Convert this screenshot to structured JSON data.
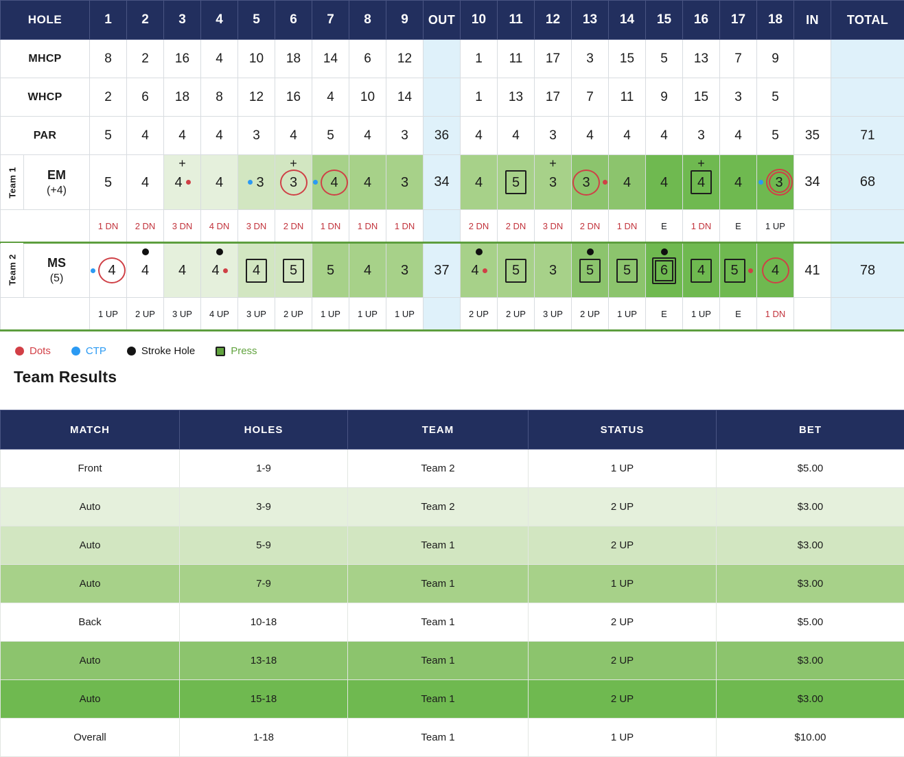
{
  "colors": {
    "navy": "#222f5e",
    "accent_red": "#cf4046",
    "accent_blue": "#2b9af3",
    "press_green": "#5d9e3e",
    "total_col_bg": "#dff1fa",
    "press_levels": [
      "#ffffff",
      "#e5f0dc",
      "#d2e6c1",
      "#a7d189",
      "#8cc46d",
      "#6fb950"
    ]
  },
  "scorecard": {
    "header": {
      "hole": "HOLE",
      "out": "OUT",
      "in": "IN",
      "total": "TOTAL",
      "holes": [
        "1",
        "2",
        "3",
        "4",
        "5",
        "6",
        "7",
        "8",
        "9",
        "10",
        "11",
        "12",
        "13",
        "14",
        "15",
        "16",
        "17",
        "18"
      ]
    },
    "mhcp": {
      "label": "MHCP",
      "front": [
        "8",
        "2",
        "16",
        "4",
        "10",
        "18",
        "14",
        "6",
        "12"
      ],
      "back": [
        "1",
        "11",
        "17",
        "3",
        "15",
        "5",
        "13",
        "7",
        "9"
      ],
      "out": "",
      "in": "",
      "total": ""
    },
    "whcp": {
      "label": "WHCP",
      "front": [
        "2",
        "6",
        "18",
        "8",
        "12",
        "16",
        "4",
        "10",
        "14"
      ],
      "back": [
        "1",
        "13",
        "17",
        "7",
        "11",
        "9",
        "15",
        "3",
        "5"
      ],
      "out": "",
      "in": "",
      "total": ""
    },
    "par": {
      "label": "PAR",
      "front": [
        "5",
        "4",
        "4",
        "4",
        "3",
        "4",
        "5",
        "4",
        "3"
      ],
      "back": [
        "4",
        "4",
        "3",
        "4",
        "4",
        "4",
        "3",
        "4",
        "5"
      ],
      "out": "36",
      "in": "35",
      "total": "71"
    },
    "teams": [
      {
        "team_label": "Team 1",
        "player": "EM",
        "handicap": "(+4)",
        "out_total": "34",
        "in_total": "34",
        "grand_total": "68",
        "holes": [
          {
            "score": "5",
            "bg": 0,
            "deco": "none",
            "plus": false,
            "stroke": false,
            "ctp": false,
            "dot": false,
            "status": "1 DN",
            "status_red": true
          },
          {
            "score": "4",
            "bg": 0,
            "deco": "none",
            "plus": false,
            "stroke": false,
            "ctp": false,
            "dot": false,
            "status": "2 DN",
            "status_red": true
          },
          {
            "score": "4",
            "bg": 1,
            "deco": "none",
            "plus": true,
            "stroke": false,
            "ctp": false,
            "dot": true,
            "status": "3 DN",
            "status_red": true
          },
          {
            "score": "4",
            "bg": 1,
            "deco": "none",
            "plus": false,
            "stroke": false,
            "ctp": false,
            "dot": false,
            "status": "4 DN",
            "status_red": true
          },
          {
            "score": "3",
            "bg": 2,
            "deco": "none",
            "plus": false,
            "stroke": false,
            "ctp": true,
            "dot": false,
            "status": "3 DN",
            "status_red": true
          },
          {
            "score": "3",
            "bg": 2,
            "deco": "circle",
            "plus": true,
            "stroke": false,
            "ctp": false,
            "dot": false,
            "status": "2 DN",
            "status_red": true
          },
          {
            "score": "4",
            "bg": 3,
            "deco": "circle",
            "plus": false,
            "stroke": false,
            "ctp": true,
            "dot": false,
            "status": "1 DN",
            "status_red": true
          },
          {
            "score": "4",
            "bg": 3,
            "deco": "none",
            "plus": false,
            "stroke": false,
            "ctp": false,
            "dot": false,
            "status": "1 DN",
            "status_red": true
          },
          {
            "score": "3",
            "bg": 3,
            "deco": "none",
            "plus": false,
            "stroke": false,
            "ctp": false,
            "dot": false,
            "status": "1 DN",
            "status_red": true
          },
          {
            "score": "4",
            "bg": 3,
            "deco": "none",
            "plus": false,
            "stroke": false,
            "ctp": false,
            "dot": false,
            "status": "2 DN",
            "status_red": true
          },
          {
            "score": "5",
            "bg": 3,
            "deco": "square",
            "plus": false,
            "stroke": false,
            "ctp": false,
            "dot": false,
            "status": "2 DN",
            "status_red": true
          },
          {
            "score": "3",
            "bg": 3,
            "deco": "none",
            "plus": true,
            "stroke": false,
            "ctp": false,
            "dot": false,
            "status": "3 DN",
            "status_red": true
          },
          {
            "score": "3",
            "bg": 4,
            "deco": "circle",
            "plus": false,
            "stroke": false,
            "ctp": false,
            "dot": true,
            "status": "2 DN",
            "status_red": true
          },
          {
            "score": "4",
            "bg": 4,
            "deco": "none",
            "plus": false,
            "stroke": false,
            "ctp": false,
            "dot": false,
            "status": "1 DN",
            "status_red": true
          },
          {
            "score": "4",
            "bg": 5,
            "deco": "none",
            "plus": false,
            "stroke": false,
            "ctp": false,
            "dot": false,
            "status": "E",
            "status_red": false
          },
          {
            "score": "4",
            "bg": 5,
            "deco": "square",
            "plus": true,
            "stroke": false,
            "ctp": false,
            "dot": false,
            "status": "1 DN",
            "status_red": true
          },
          {
            "score": "4",
            "bg": 5,
            "deco": "none",
            "plus": false,
            "stroke": false,
            "ctp": false,
            "dot": false,
            "status": "E",
            "status_red": false
          },
          {
            "score": "3",
            "bg": 5,
            "deco": "circle2",
            "plus": false,
            "stroke": false,
            "ctp": true,
            "dot": false,
            "status": "1 UP",
            "status_red": false
          }
        ]
      },
      {
        "team_label": "Team 2",
        "player": "MS",
        "handicap": "(5)",
        "out_total": "37",
        "in_total": "41",
        "grand_total": "78",
        "holes": [
          {
            "score": "4",
            "bg": 0,
            "deco": "circle",
            "plus": false,
            "stroke": false,
            "ctp": true,
            "dot": false,
            "status": "1 UP",
            "status_red": false
          },
          {
            "score": "4",
            "bg": 0,
            "deco": "none",
            "plus": false,
            "stroke": true,
            "ctp": false,
            "dot": false,
            "status": "2 UP",
            "status_red": false
          },
          {
            "score": "4",
            "bg": 1,
            "deco": "none",
            "plus": false,
            "stroke": false,
            "ctp": false,
            "dot": false,
            "status": "3 UP",
            "status_red": false
          },
          {
            "score": "4",
            "bg": 1,
            "deco": "none",
            "plus": false,
            "stroke": true,
            "ctp": false,
            "dot": true,
            "status": "4 UP",
            "status_red": false
          },
          {
            "score": "4",
            "bg": 2,
            "deco": "square",
            "plus": false,
            "stroke": false,
            "ctp": false,
            "dot": false,
            "status": "3 UP",
            "status_red": false
          },
          {
            "score": "5",
            "bg": 2,
            "deco": "square",
            "plus": false,
            "stroke": false,
            "ctp": false,
            "dot": false,
            "status": "2 UP",
            "status_red": false
          },
          {
            "score": "5",
            "bg": 3,
            "deco": "none",
            "plus": false,
            "stroke": false,
            "ctp": false,
            "dot": false,
            "status": "1 UP",
            "status_red": false
          },
          {
            "score": "4",
            "bg": 3,
            "deco": "none",
            "plus": false,
            "stroke": false,
            "ctp": false,
            "dot": false,
            "status": "1 UP",
            "status_red": false
          },
          {
            "score": "3",
            "bg": 3,
            "deco": "none",
            "plus": false,
            "stroke": false,
            "ctp": false,
            "dot": false,
            "status": "1 UP",
            "status_red": false
          },
          {
            "score": "4",
            "bg": 3,
            "deco": "none",
            "plus": false,
            "stroke": true,
            "ctp": false,
            "dot": true,
            "status": "2 UP",
            "status_red": false
          },
          {
            "score": "5",
            "bg": 3,
            "deco": "square",
            "plus": false,
            "stroke": false,
            "ctp": false,
            "dot": false,
            "status": "2 UP",
            "status_red": false
          },
          {
            "score": "3",
            "bg": 3,
            "deco": "none",
            "plus": false,
            "stroke": false,
            "ctp": false,
            "dot": false,
            "status": "3 UP",
            "status_red": false
          },
          {
            "score": "5",
            "bg": 4,
            "deco": "square",
            "plus": false,
            "stroke": true,
            "ctp": false,
            "dot": false,
            "status": "2 UP",
            "status_red": false
          },
          {
            "score": "5",
            "bg": 4,
            "deco": "square",
            "plus": false,
            "stroke": false,
            "ctp": false,
            "dot": false,
            "status": "1 UP",
            "status_red": false
          },
          {
            "score": "6",
            "bg": 5,
            "deco": "square2",
            "plus": false,
            "stroke": true,
            "ctp": false,
            "dot": false,
            "status": "E",
            "status_red": false
          },
          {
            "score": "4",
            "bg": 5,
            "deco": "square",
            "plus": false,
            "stroke": false,
            "ctp": false,
            "dot": false,
            "status": "1 UP",
            "status_red": false
          },
          {
            "score": "5",
            "bg": 5,
            "deco": "square",
            "plus": false,
            "stroke": false,
            "ctp": false,
            "dot": true,
            "status": "E",
            "status_red": false
          },
          {
            "score": "4",
            "bg": 5,
            "deco": "circle",
            "plus": false,
            "stroke": false,
            "ctp": false,
            "dot": false,
            "status": "1 DN",
            "status_red": true
          }
        ]
      }
    ]
  },
  "legend": {
    "items": [
      {
        "label": "Dots",
        "shape": "dot",
        "color": "#d23f46"
      },
      {
        "label": "CTP",
        "shape": "dot",
        "color": "#2b9af3"
      },
      {
        "label": "Stroke Hole",
        "shape": "dot",
        "color": "#141414"
      },
      {
        "label": "Press",
        "shape": "square",
        "color": "#61a33e"
      }
    ]
  },
  "section_title": "Team Results",
  "results_table": {
    "headers": [
      "MATCH",
      "HOLES",
      "TEAM",
      "STATUS",
      "BET"
    ],
    "rows": [
      {
        "match": "Front",
        "holes": "1-9",
        "team": "Team 2",
        "status": "1 UP",
        "bet": "$5.00",
        "press_level": 0
      },
      {
        "match": "Auto",
        "holes": "3-9",
        "team": "Team 2",
        "status": "2 UP",
        "bet": "$3.00",
        "press_level": 1
      },
      {
        "match": "Auto",
        "holes": "5-9",
        "team": "Team 1",
        "status": "2 UP",
        "bet": "$3.00",
        "press_level": 2
      },
      {
        "match": "Auto",
        "holes": "7-9",
        "team": "Team 1",
        "status": "1 UP",
        "bet": "$3.00",
        "press_level": 3
      },
      {
        "match": "Back",
        "holes": "10-18",
        "team": "Team 1",
        "status": "2 UP",
        "bet": "$5.00",
        "press_level": 0
      },
      {
        "match": "Auto",
        "holes": "13-18",
        "team": "Team 1",
        "status": "2 UP",
        "bet": "$3.00",
        "press_level": 4
      },
      {
        "match": "Auto",
        "holes": "15-18",
        "team": "Team 1",
        "status": "2 UP",
        "bet": "$3.00",
        "press_level": 5
      },
      {
        "match": "Overall",
        "holes": "1-18",
        "team": "Team 1",
        "status": "1 UP",
        "bet": "$10.00",
        "press_level": 0
      }
    ]
  }
}
